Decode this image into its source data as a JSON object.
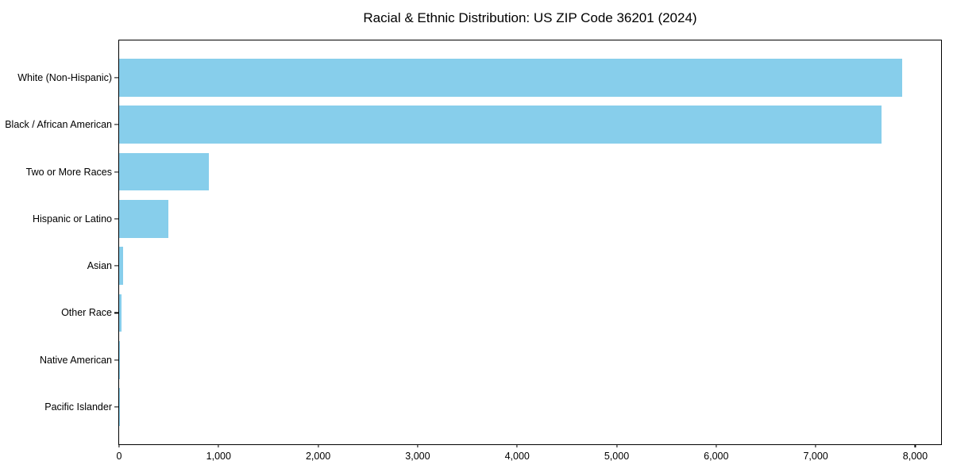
{
  "chart_data": {
    "type": "bar",
    "orientation": "horizontal",
    "title": "Racial & Ethnic Distribution: US ZIP Code 36201 (2024)",
    "categories": [
      "White (Non-Hispanic)",
      "Black / African American",
      "Two or More Races",
      "Hispanic or Latino",
      "Asian",
      "Other Race",
      "Native American",
      "Pacific Islander"
    ],
    "values": [
      7865,
      7665,
      900,
      495,
      40,
      24,
      10,
      3
    ],
    "xlabel": "",
    "ylabel": "",
    "xlim": [
      0,
      8260
    ],
    "xticks": [
      0,
      1000,
      2000,
      3000,
      4000,
      5000,
      6000,
      7000,
      8000
    ],
    "xtick_labels": [
      "0",
      "1,000",
      "2,000",
      "3,000",
      "4,000",
      "5,000",
      "6,000",
      "7,000",
      "8,000"
    ],
    "grid": false,
    "legend": null,
    "bar_color": "#87CEEB",
    "axis_color": "#000000",
    "background_color": "#FFFFFF",
    "text_color": "#000000",
    "bar_height_ratio": 0.8,
    "y_outer_margin_units": 0.79
  }
}
